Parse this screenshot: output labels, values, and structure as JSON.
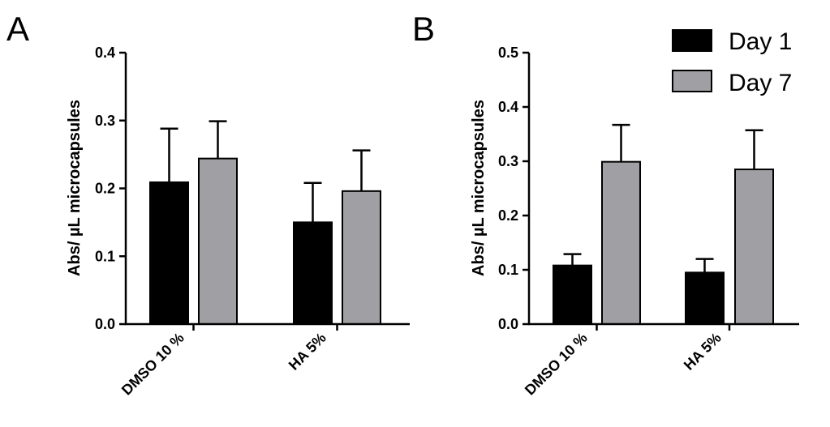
{
  "figure": {
    "panels": [
      "A",
      "B"
    ]
  },
  "legend": {
    "items": [
      {
        "label": "Day 1",
        "color": "#000000"
      },
      {
        "label": "Day 7",
        "color": "#a0a0a4"
      }
    ]
  },
  "chart_data": [
    {
      "panel": "A",
      "type": "bar",
      "categories": [
        "DMSO 10 %",
        "HA 5%"
      ],
      "ylabel": "Abs/ µL microcapsules",
      "ylim": [
        0,
        0.4
      ],
      "yticks": [
        "0.0",
        "0.1",
        "0.2",
        "0.3",
        "0.4"
      ],
      "grid": false,
      "series": [
        {
          "name": "Day 1",
          "values": [
            0.209,
            0.15
          ],
          "errors": [
            0.079,
            0.058
          ]
        },
        {
          "name": "Day 7",
          "values": [
            0.244,
            0.196
          ],
          "errors": [
            0.055,
            0.06
          ]
        }
      ]
    },
    {
      "panel": "B",
      "type": "bar",
      "categories": [
        "DMSO 10 %",
        "HA 5%"
      ],
      "ylabel": "Abs/ µL microcapsules",
      "ylim": [
        0,
        0.5
      ],
      "yticks": [
        "0.0",
        "0.1",
        "0.2",
        "0.3",
        "0.4",
        "0.5"
      ],
      "grid": false,
      "legend_position": "top-right",
      "series": [
        {
          "name": "Day 1",
          "values": [
            0.108,
            0.095
          ],
          "errors": [
            0.021,
            0.025
          ]
        },
        {
          "name": "Day 7",
          "values": [
            0.299,
            0.285
          ],
          "errors": [
            0.068,
            0.072
          ]
        }
      ]
    }
  ]
}
